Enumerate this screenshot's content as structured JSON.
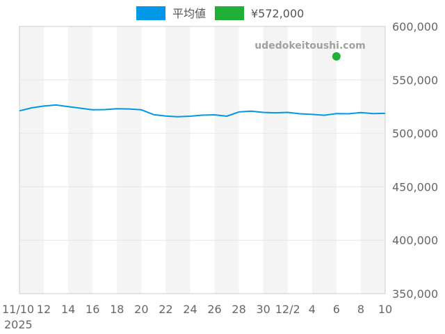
{
  "chart_data": {
    "type": "line",
    "x": [
      "11/10",
      "11/11",
      "11/12",
      "11/13",
      "11/14",
      "11/15",
      "11/16",
      "11/17",
      "11/18",
      "11/19",
      "11/20",
      "11/21",
      "11/22",
      "11/23",
      "11/24",
      "11/25",
      "11/26",
      "11/27",
      "11/28",
      "11/29",
      "11/30",
      "12/1",
      "12/2",
      "12/3",
      "12/4",
      "12/5",
      "12/6",
      "12/7",
      "12/8",
      "12/9",
      "12/10"
    ],
    "x_tick_labels": [
      "11/10",
      "12",
      "14",
      "16",
      "18",
      "20",
      "22",
      "24",
      "26",
      "28",
      "30",
      "12/2",
      "4",
      "6",
      "8",
      "10"
    ],
    "x_year_label": "2025",
    "series": [
      {
        "name": "平均値",
        "color": "#0097e6",
        "values": [
          521000,
          523800,
          525500,
          526500,
          525000,
          523500,
          522000,
          522200,
          523000,
          522800,
          522000,
          517500,
          516200,
          515500,
          516000,
          517000,
          517300,
          516000,
          520000,
          520800,
          519600,
          519200,
          519600,
          518300,
          517700,
          516900,
          518500,
          518300,
          519400,
          518400,
          518700
        ]
      },
      {
        "name": "¥572,000",
        "color": "#20b038",
        "points": [
          {
            "x": "12/6",
            "y": 572000
          }
        ]
      }
    ],
    "y_ticks": [
      "350,000",
      "400,000",
      "450,000",
      "500,000",
      "550,000",
      "600,000"
    ],
    "ylim": [
      350000,
      600000
    ],
    "y_axis_position": "right",
    "grid": true,
    "legend_position": "top-center",
    "watermark": "udedokeitoushi.com",
    "colors": {
      "band": "#f4f4f4",
      "grid": "#e6e6e6",
      "axis": "#cccccc",
      "tick_text": "#666666",
      "watermark": "#a0a0a0"
    }
  }
}
